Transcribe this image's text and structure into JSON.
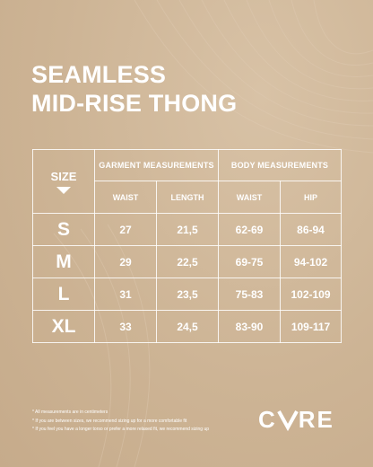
{
  "product": {
    "title_line1": "SEAMLESS",
    "title_line2": "MID-RISE THONG"
  },
  "table": {
    "size_header": "SIZE",
    "garment_header": "GARMENT MEASUREMENTS",
    "body_header": "BODY MEASUREMENTS",
    "subheaders": [
      "WAIST",
      "LENGTH",
      "WAIST",
      "HIP"
    ],
    "rows": [
      {
        "size": "S",
        "g_waist": "27",
        "g_length": "21,5",
        "b_waist": "62-69",
        "b_hip": "86-94"
      },
      {
        "size": "M",
        "g_waist": "29",
        "g_length": "22,5",
        "b_waist": "69-75",
        "b_hip": "94-102"
      },
      {
        "size": "L",
        "g_waist": "31",
        "g_length": "23,5",
        "b_waist": "75-83",
        "b_hip": "102-109"
      },
      {
        "size": "XL",
        "g_waist": "33",
        "g_length": "24,5",
        "b_waist": "83-90",
        "b_hip": "109-117"
      }
    ]
  },
  "notes": [
    "* All measurements are in centimeters",
    "* If you are between sizes, we recommend sizing up for a more comfortable fit",
    "* If you feel you have a longer torso or prefer a more relaxed fit, we recommend sizing up"
  ],
  "brand": {
    "logo_left": "C",
    "logo_right": "RE",
    "logo_text": "CVRE"
  },
  "colors": {
    "background": "#cdb495",
    "text": "#ffffff"
  }
}
